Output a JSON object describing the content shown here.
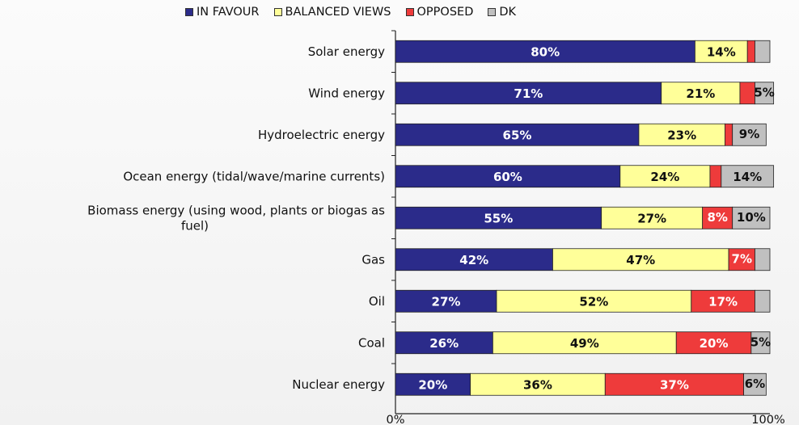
{
  "chart_data": {
    "type": "bar",
    "orientation": "horizontal",
    "stacked": true,
    "categories": [
      "Solar energy",
      "Wind energy",
      "Hydroelectric energy",
      "Ocean energy (tidal/wave/marine currents)",
      "Biomass energy (using wood, plants or biogas as fuel)",
      "Gas",
      "Oil",
      "Coal",
      "Nuclear energy"
    ],
    "category_lines": [
      [
        "Solar energy"
      ],
      [
        "Wind energy"
      ],
      [
        "Hydroelectric energy"
      ],
      [
        "Ocean energy (tidal/wave/marine currents)"
      ],
      [
        "Biomass energy (using wood, plants or biogas as",
        "fuel)"
      ],
      [
        "Gas"
      ],
      [
        "Oil"
      ],
      [
        "Coal"
      ],
      [
        "Nuclear energy"
      ]
    ],
    "series": [
      {
        "name": "IN FAVOUR",
        "color": "#2b2b8a",
        "label_color": "#ffffff",
        "values": [
          80,
          71,
          65,
          60,
          55,
          42,
          27,
          26,
          20
        ],
        "labels": [
          "80%",
          "71%",
          "65%",
          "60%",
          "55%",
          "42%",
          "27%",
          "26%",
          "20%"
        ]
      },
      {
        "name": "BALANCED VIEWS",
        "color": "#ffff99",
        "label_color": "#111111",
        "values": [
          14,
          21,
          23,
          24,
          27,
          47,
          52,
          49,
          36
        ],
        "labels": [
          "14%",
          "21%",
          "23%",
          "24%",
          "27%",
          "47%",
          "52%",
          "49%",
          "36%"
        ]
      },
      {
        "name": "OPPOSED",
        "color": "#ee3b3b",
        "label_color": "#ffffff",
        "values": [
          2,
          4,
          2,
          3,
          8,
          7,
          17,
          20,
          37
        ],
        "labels": [
          "",
          "",
          "",
          "",
          "8%",
          "7%",
          "17%",
          "20%",
          "37%"
        ]
      },
      {
        "name": "DK",
        "color": "#c0c0c0",
        "label_color": "#111111",
        "values": [
          4,
          5,
          9,
          14,
          10,
          4,
          4,
          5,
          6
        ],
        "labels": [
          "",
          "5%",
          "9%",
          "14%",
          "10%",
          "",
          "",
          "5%",
          "6%"
        ]
      }
    ],
    "xlim": [
      0,
      100
    ],
    "x_ticks": [
      "0%",
      "100%"
    ],
    "legend_position": "top",
    "grid": false
  }
}
